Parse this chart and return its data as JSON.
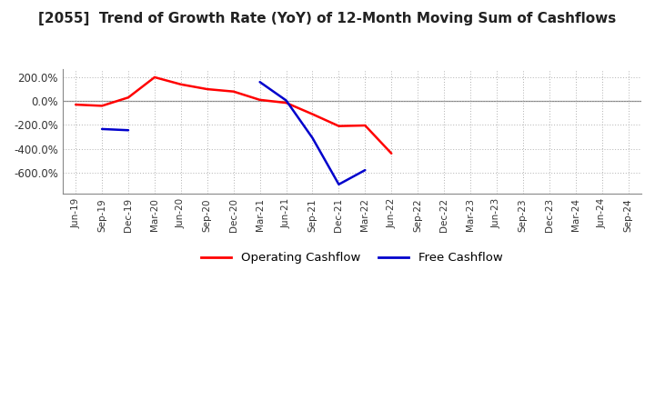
{
  "title": "[2055]  Trend of Growth Rate (YoY) of 12-Month Moving Sum of Cashflows",
  "title_fontsize": 11,
  "background_color": "#ffffff",
  "grid_color": "#b0b0b0",
  "x_labels": [
    "Jun-19",
    "Sep-19",
    "Dec-19",
    "Mar-20",
    "Jun-20",
    "Sep-20",
    "Dec-20",
    "Mar-21",
    "Jun-21",
    "Sep-21",
    "Dec-21",
    "Mar-22",
    "Jun-22",
    "Sep-22",
    "Dec-22",
    "Mar-23",
    "Jun-23",
    "Sep-23",
    "Dec-23",
    "Mar-24",
    "Jun-24",
    "Sep-24"
  ],
  "operating_cashflow": [
    -30,
    -40,
    30,
    200,
    140,
    100,
    80,
    10,
    -15,
    -110,
    -210,
    -205,
    -440,
    null,
    null,
    null,
    null,
    null,
    null,
    null,
    null,
    null
  ],
  "free_cashflow": [
    null,
    -235,
    -245,
    null,
    null,
    null,
    null,
    160,
    5,
    -310,
    -700,
    -580,
    null,
    null,
    null,
    null,
    null,
    null,
    null,
    null,
    null,
    null
  ],
  "ylim": [
    -780,
    270
  ],
  "yticks": [
    200,
    0,
    -200,
    -400,
    -600
  ],
  "ytick_labels": [
    "200.0%",
    "0.0%",
    "-200.0%",
    "-400.0%",
    "-600.0%"
  ],
  "line_color_operating": "#ff0000",
  "line_color_free": "#0000cc",
  "legend_labels": [
    "Operating Cashflow",
    "Free Cashflow"
  ],
  "legend_colors": [
    "#ff0000",
    "#0000cc"
  ]
}
